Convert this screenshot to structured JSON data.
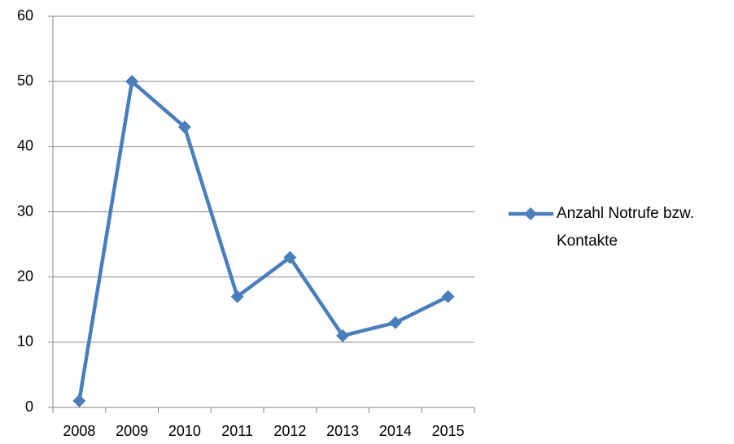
{
  "chart_data": {
    "type": "line",
    "categories": [
      "2008",
      "2009",
      "2010",
      "2011",
      "2012",
      "2013",
      "2014",
      "2015"
    ],
    "series": [
      {
        "name": "Anzahl Notrufe bzw. Kontakte",
        "color": "#4a7ebb",
        "values": [
          1,
          50,
          43,
          17,
          23,
          11,
          13,
          17
        ]
      }
    ],
    "ylim": [
      0,
      60
    ],
    "yticks": [
      0,
      10,
      20,
      30,
      40,
      50,
      60
    ],
    "grid": true,
    "legend": "right",
    "markers": "diamond"
  }
}
